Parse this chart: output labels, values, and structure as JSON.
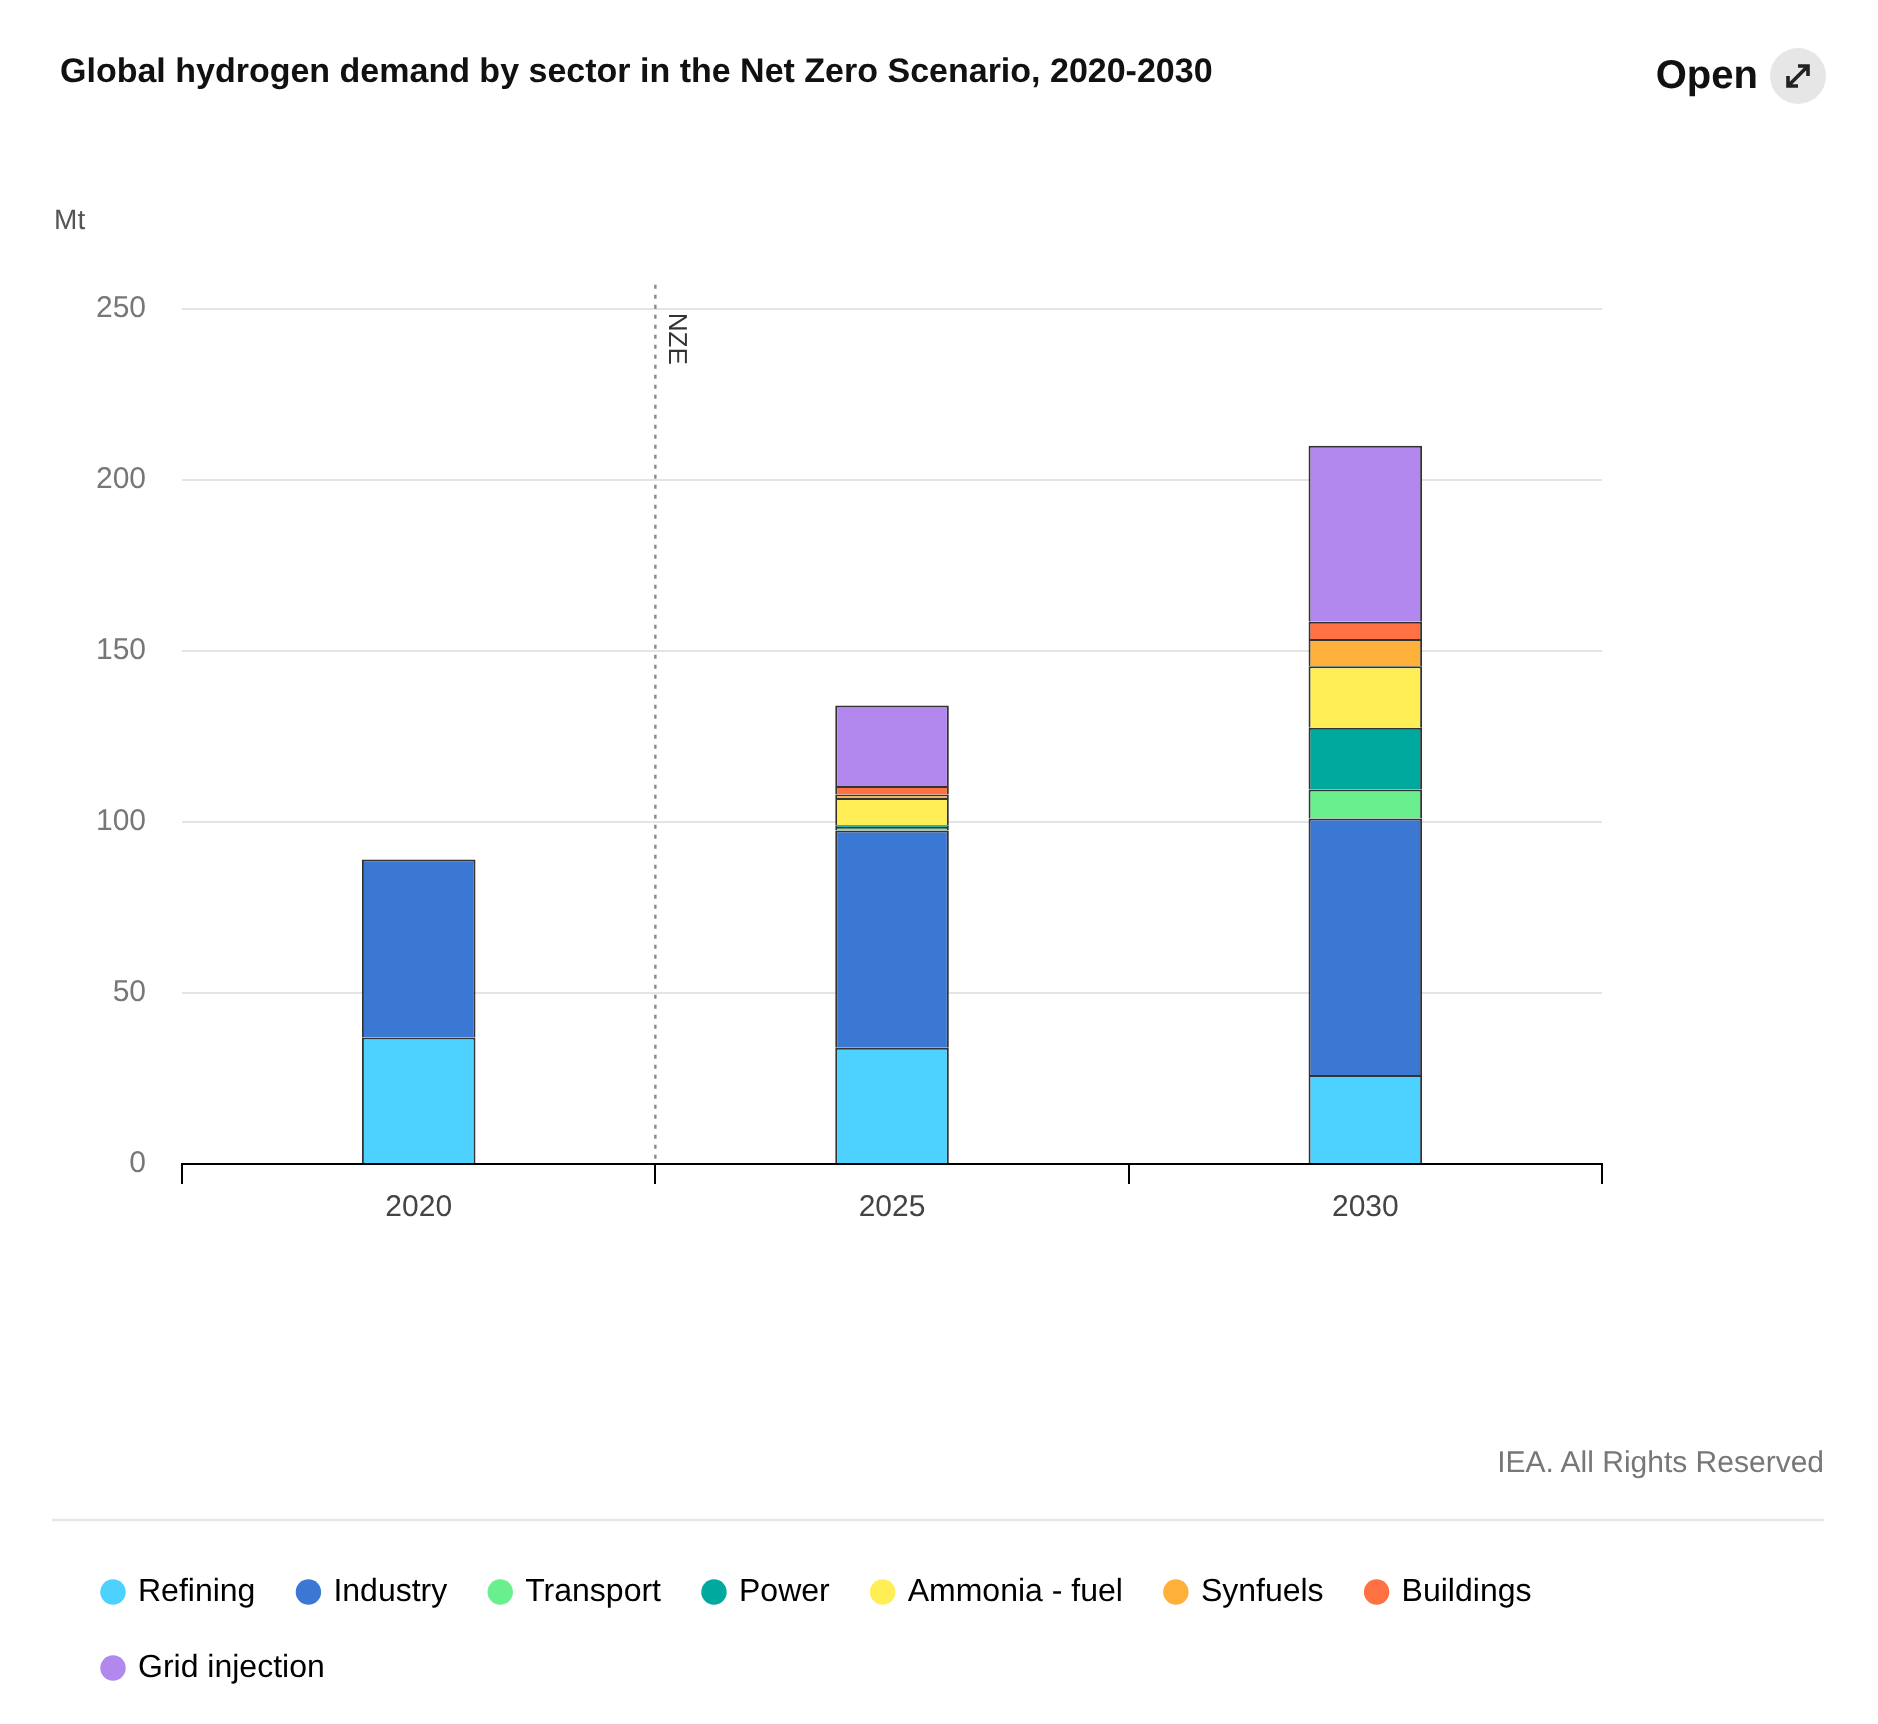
{
  "chart_data": {
    "type": "bar",
    "title": "Global hydrogen demand by sector in the Net Zero Scenario, 2020-2030",
    "ylabel": "Mt",
    "stacked": true,
    "x": [
      2020,
      2025,
      2030
    ],
    "xlim": [
      2017.5,
      2032.5
    ],
    "xticks": [
      {
        "value": 2017.5,
        "label": null
      },
      2020,
      {
        "value": 2022.5,
        "label": null
      },
      2025,
      {
        "value": 2027.5,
        "label": null
      },
      2030,
      {
        "value": 2032.5,
        "label": null
      }
    ],
    "series": [
      {
        "name": "Refining",
        "color": "#4dd2ff",
        "values": [
          37,
          34,
          26
        ]
      },
      {
        "name": "Industry",
        "color": "#3b78d4",
        "values": [
          52,
          63.5,
          75
        ]
      },
      {
        "name": "Transport",
        "color": "#6aef8f",
        "values": [
          0,
          1,
          8.5
        ]
      },
      {
        "name": "Power",
        "color": "#00a99d",
        "values": [
          0,
          0.5,
          18
        ]
      },
      {
        "name": "Ammonia - fuel",
        "color": "#ffee55",
        "values": [
          0,
          8,
          18
        ]
      },
      {
        "name": "Synfuels",
        "color": "#ffb03b",
        "values": [
          0,
          1,
          8
        ]
      },
      {
        "name": "Buildings",
        "color": "#ff7043",
        "values": [
          0,
          2.5,
          5
        ]
      },
      {
        "name": "Grid injection",
        "color": "#b388ee",
        "values": [
          0,
          23.5,
          51.5
        ]
      }
    ],
    "ylim": [
      0,
      250
    ],
    "yticks": [
      0,
      50,
      100,
      150,
      200,
      250
    ],
    "grid": "y",
    "legend": "bottom",
    "ref_lines": [
      {
        "axis": "x",
        "value": 2022.5,
        "label": "NZE",
        "line_style": "dotted",
        "color": "#888888"
      }
    ],
    "annotations": [
      "IEA. All Rights Reserved",
      "Open"
    ]
  }
}
